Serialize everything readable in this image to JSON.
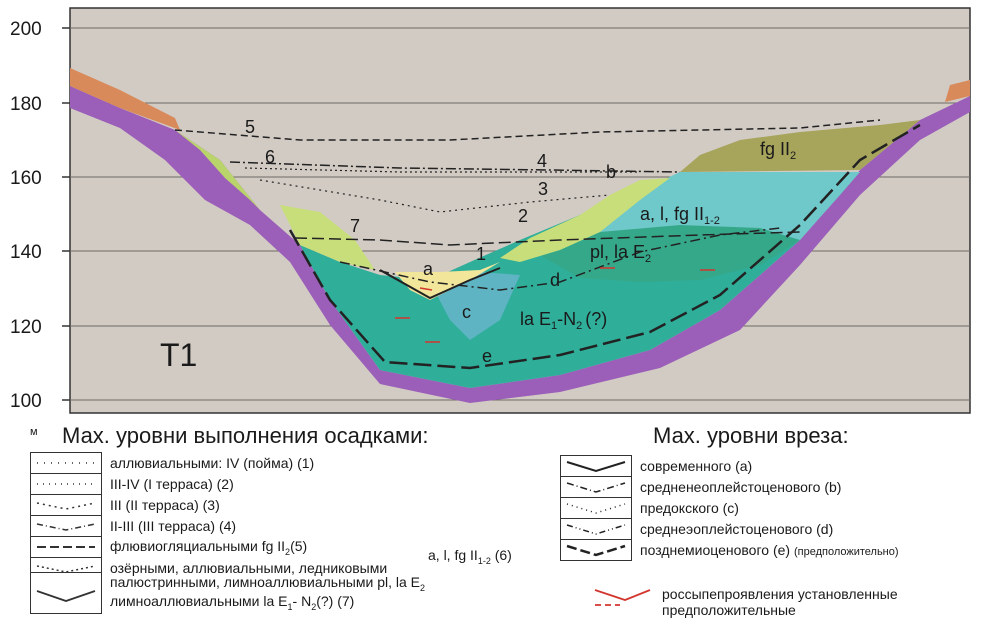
{
  "axis": {
    "y_ticks": [
      "200",
      "180",
      "160",
      "140",
      "120",
      "100"
    ],
    "unit": "м"
  },
  "section_label": "T1",
  "level_numbers": [
    "5",
    "6",
    "4",
    "3",
    "2",
    "7",
    "1"
  ],
  "incision_letters": [
    "a",
    "b",
    "c",
    "d",
    "e"
  ],
  "unit_labels": {
    "fg": "fg II",
    "fg_sub": "2",
    "alfg": "a, l, fg II",
    "alfg_sub": "1-2",
    "pl": "pl, la E",
    "pl_sub": "2",
    "la": "la E",
    "la_sub1": "1",
    "la_mid": "-N",
    "la_sub2": "2",
    "la_end": "(?)"
  },
  "legend_left": {
    "title": "Мах. уровни выполнения осадками:",
    "items": [
      "аллювиальными: IV (пойма) (1)",
      "III-IV (I терраса) (2)",
      "III (II терраса) (3)",
      "II-III (III терраса) (4)",
      "флювиогляциальными fg II",
      "озёрными, аллювиальными, ледниковыми",
      "палюстринными, лимноаллювиальными pl, la E",
      "лимноаллювиальными la E"
    ],
    "item5_sub": "2",
    "item5_end": "(5)",
    "item6_right": "a, l, fg II",
    "item6_right_sub": "1-2",
    "item6_right_end": "(6)",
    "item7_sub": "2",
    "item8_sub1": "1",
    "item8_mid": "- N",
    "item8_sub2": "2",
    "item8_end": "(?) (7)"
  },
  "legend_right": {
    "title": "Мах. уровни вреза:",
    "items": [
      "современного (a)",
      "средненеоплейстоценового (b)",
      "предокского (c)",
      "среднеэоплейстоценового (d)",
      "позднемиоценового (e)"
    ],
    "item5_note": "(предположительно)",
    "placer_1": "россыпепроявления установленные",
    "placer_2": "предположительные"
  }
}
